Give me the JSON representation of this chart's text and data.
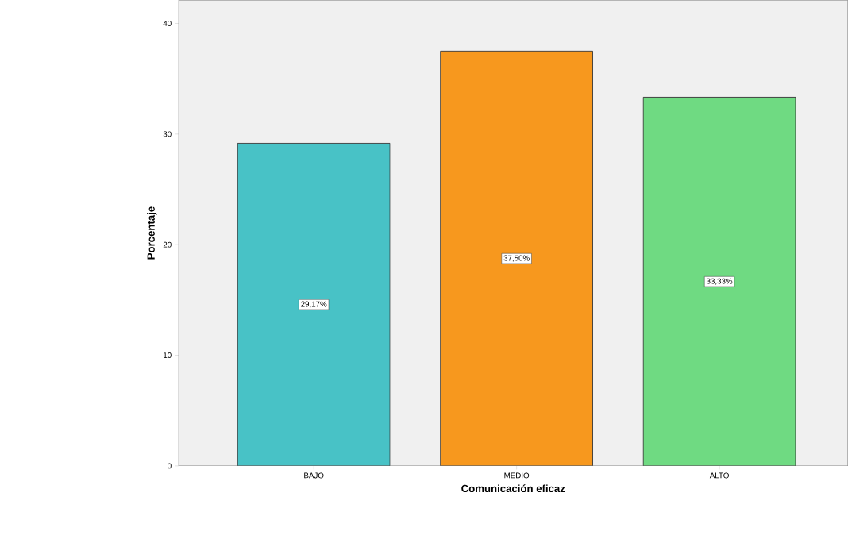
{
  "chart_data": {
    "type": "bar",
    "xlabel": "Comunicación eficaz",
    "ylabel": "Porcentaje",
    "categories": [
      "BAJO",
      "MEDIO",
      "ALTO"
    ],
    "values": [
      29.17,
      37.5,
      33.33
    ],
    "value_labels": [
      "29,17%",
      "37,50%",
      "33,33%"
    ],
    "colors": [
      "#48c2c6",
      "#f7981e",
      "#6fda82"
    ],
    "ylim": [
      0,
      42.1
    ],
    "yticks": [
      0,
      10,
      20,
      30,
      40
    ],
    "grid": false
  }
}
